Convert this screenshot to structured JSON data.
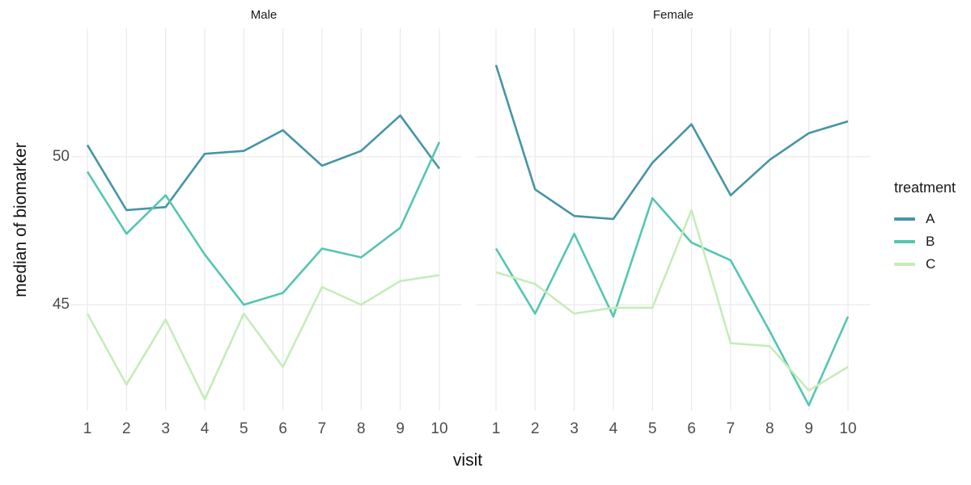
{
  "chart_data": {
    "type": "line",
    "title": "",
    "xlabel": "visit",
    "ylabel": "median of biomarker",
    "x": [
      1,
      2,
      3,
      4,
      5,
      6,
      7,
      8,
      9,
      10
    ],
    "yticks": [
      45,
      50
    ],
    "ylim": [
      41.4,
      54.3
    ],
    "grid": true,
    "background": "#ffffff",
    "gridline_color": "#ebebeb",
    "legend": {
      "title": "treatment",
      "position": "right",
      "entries": [
        {
          "label": "A",
          "color": "#4695a5"
        },
        {
          "label": "B",
          "color": "#55c6b0"
        },
        {
          "label": "C",
          "color": "#c6ecba"
        }
      ]
    },
    "facets": [
      {
        "label": "Male",
        "series": [
          {
            "name": "A",
            "values": [
              50.4,
              48.2,
              48.3,
              50.1,
              50.2,
              50.9,
              49.7,
              50.2,
              51.4,
              49.6
            ]
          },
          {
            "name": "B",
            "values": [
              49.5,
              47.4,
              48.7,
              46.7,
              45.0,
              45.4,
              46.9,
              46.6,
              47.6,
              50.5
            ]
          },
          {
            "name": "C",
            "values": [
              44.7,
              42.3,
              44.5,
              41.8,
              44.7,
              42.9,
              45.6,
              45.0,
              45.8,
              46.0
            ]
          }
        ]
      },
      {
        "label": "Female",
        "series": [
          {
            "name": "A",
            "values": [
              53.1,
              48.9,
              48.0,
              47.9,
              49.8,
              51.1,
              48.7,
              49.9,
              50.8,
              51.2
            ]
          },
          {
            "name": "B",
            "values": [
              46.9,
              44.7,
              47.4,
              44.6,
              48.6,
              47.1,
              46.5,
              44.1,
              41.6,
              44.6
            ]
          },
          {
            "name": "C",
            "values": [
              46.1,
              45.7,
              44.7,
              44.9,
              44.9,
              48.2,
              43.7,
              43.6,
              42.1,
              42.9
            ]
          }
        ]
      }
    ]
  }
}
